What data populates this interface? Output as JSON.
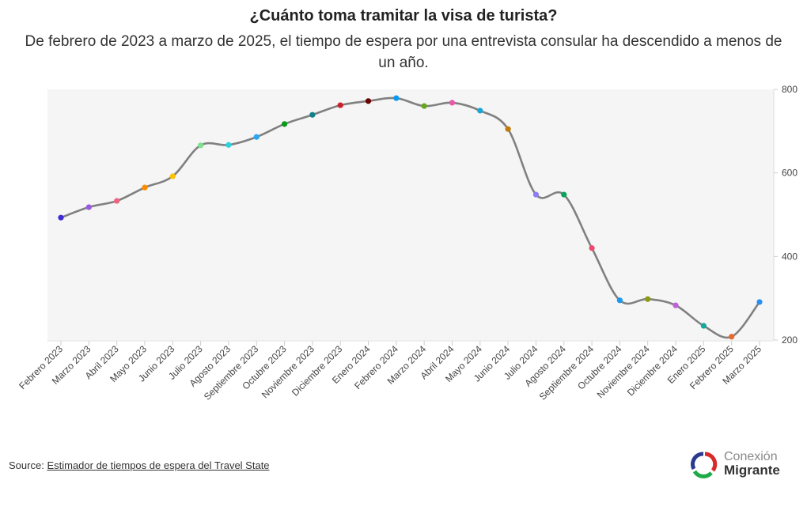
{
  "title": "¿Cuánto toma tramitar la visa de turista?",
  "subtitle": "De febrero de 2023 a marzo de 2025, el tiempo de espera por una entrevista consular ha descendido a menos de un año.",
  "source": {
    "label": "Source:",
    "link_text": "Estimador de tiempos de espera del Travel State"
  },
  "logo": {
    "line1": "Conexión",
    "line2": "Migrante"
  },
  "chart_data": {
    "type": "line",
    "title": "¿Cuánto toma tramitar la visa de turista?",
    "xlabel": "",
    "ylabel": "",
    "ylim": [
      200,
      800
    ],
    "yticks": [
      200,
      400,
      600,
      800
    ],
    "y_axis_side": "right",
    "grid": false,
    "line_color": "#808080",
    "smooth": true,
    "categories": [
      "Febrero 2023",
      "Marzo 2023",
      "Abril 2023",
      "Mayo 2023",
      "Junio 2023",
      "Julio 2023",
      "Agosto 2023",
      "Septiembre 2023",
      "Octubre 2023",
      "Noviembre 2023",
      "Diciembre 2023",
      "Enero 2024",
      "Febrero 2024",
      "Marzo 2024",
      "Abril 2024",
      "Mayo 2024",
      "Junio 2024",
      "Julio 2024",
      "Agosto 2024",
      "Septiembre 2024",
      "Octubre 2024",
      "Noviembre 2024",
      "Diciembre 2024",
      "Enero 2025",
      "Febrero 2025",
      "Marzo 2025"
    ],
    "values": [
      493,
      518,
      533,
      565,
      592,
      666,
      667,
      686,
      717,
      739,
      762,
      772,
      779,
      760,
      768,
      749,
      705,
      548,
      548,
      420,
      295,
      298,
      283,
      234,
      208,
      291
    ],
    "point_colors": [
      "#3f2bd6",
      "#9b59e0",
      "#f06282",
      "#ff8c00",
      "#ffc107",
      "#7fe08f",
      "#2ed3e0",
      "#2aa7f0",
      "#0a9a1a",
      "#127f8a",
      "#c8202c",
      "#6b0000",
      "#0a9af0",
      "#66a61e",
      "#e75aa8",
      "#1aa5d6",
      "#c17d0a",
      "#8c7cf5",
      "#0aa55a",
      "#ef4870",
      "#1a9af0",
      "#8c9a10",
      "#c160d8",
      "#13a89e",
      "#e8692c",
      "#2a8ff0"
    ]
  }
}
